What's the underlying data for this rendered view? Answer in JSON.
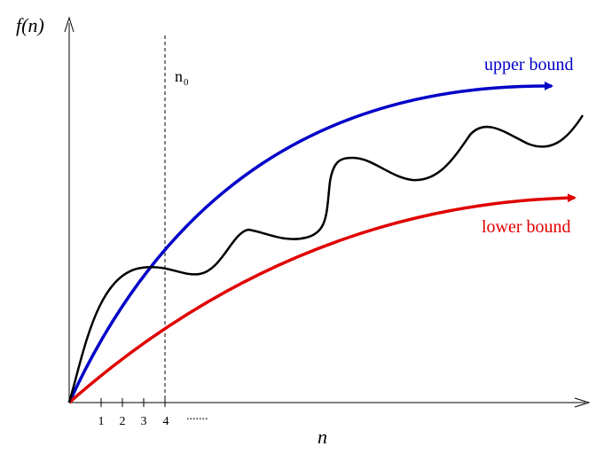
{
  "axes": {
    "y_label": "f(n)",
    "x_label": "n",
    "x_ticks": [
      "1",
      "2",
      "3",
      "4"
    ],
    "continuation": "......."
  },
  "marker": {
    "label_main": "n",
    "label_sub": "0"
  },
  "curves": {
    "upper": {
      "label": "upper bound",
      "color": "#0000c8"
    },
    "lower": {
      "label": "lower bound",
      "color": "#e00000"
    },
    "function": {
      "color": "#000000"
    }
  }
}
